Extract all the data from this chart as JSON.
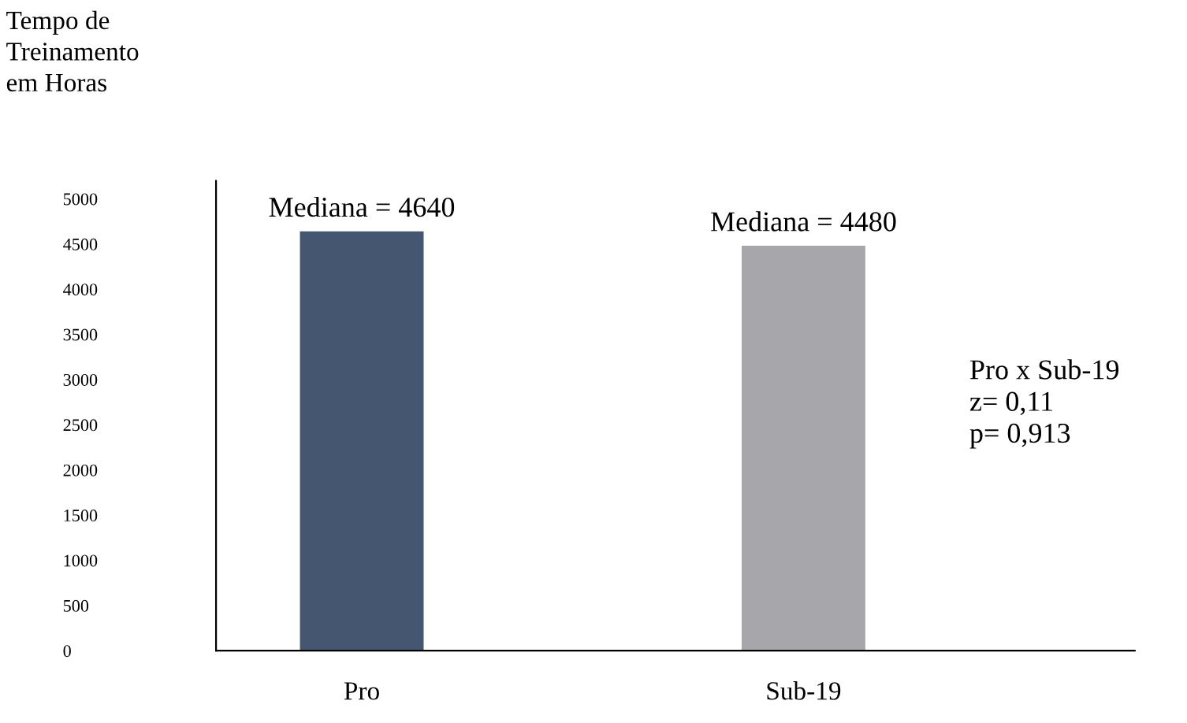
{
  "chart_data": {
    "type": "bar",
    "ylabel": "Tempo de\nTreinamento\nem Horas",
    "categories": [
      "Pro",
      "Sub-19"
    ],
    "values": [
      4640,
      4480
    ],
    "value_labels": [
      "Mediana = 4640",
      "Mediana = 4480"
    ],
    "colors": [
      "#455670",
      "#a7a7ab"
    ],
    "ylim": [
      0,
      5200
    ],
    "yticks": [
      0,
      500,
      1000,
      1500,
      2000,
      2500,
      3000,
      3500,
      4000,
      4500,
      5000
    ],
    "annotations": [
      "Pro x Sub-19\nz= 0,11\np= 0,913"
    ],
    "grid": false,
    "legend": false
  }
}
